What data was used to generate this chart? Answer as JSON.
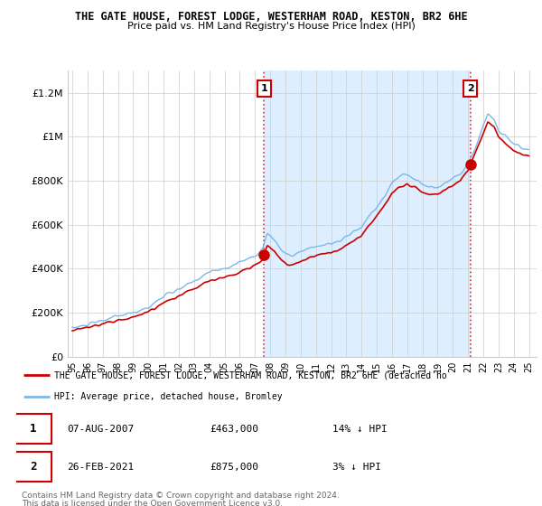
{
  "title1": "THE GATE HOUSE, FOREST LODGE, WESTERHAM ROAD, KESTON, BR2 6HE",
  "title2": "Price paid vs. HM Land Registry's House Price Index (HPI)",
  "ylim": [
    0,
    1300000
  ],
  "yticks": [
    0,
    200000,
    400000,
    600000,
    800000,
    1000000,
    1200000
  ],
  "ytick_labels": [
    "£0",
    "£200K",
    "£400K",
    "£600K",
    "£800K",
    "£1M",
    "£1.2M"
  ],
  "sale1_year": 2007.6,
  "sale1_price": 463000,
  "sale2_year": 2021.15,
  "sale2_price": 875000,
  "hpi_color": "#7bb8e8",
  "hpi_fill_color": "#ddeeff",
  "price_color": "#cc0000",
  "annotation_color": "#cc0000",
  "background_color": "#ffffff",
  "grid_color": "#cccccc",
  "legend_label_red": "THE GATE HOUSE, FOREST LODGE, WESTERHAM ROAD, KESTON, BR2 6HE (detached ho",
  "legend_label_blue": "HPI: Average price, detached house, Bromley",
  "table_row1": [
    "1",
    "07-AUG-2007",
    "£463,000",
    "14% ↓ HPI"
  ],
  "table_row2": [
    "2",
    "26-FEB-2021",
    "£875,000",
    "3% ↓ HPI"
  ],
  "footer1": "Contains HM Land Registry data © Crown copyright and database right 2024.",
  "footer2": "This data is licensed under the Open Government Licence v3.0."
}
